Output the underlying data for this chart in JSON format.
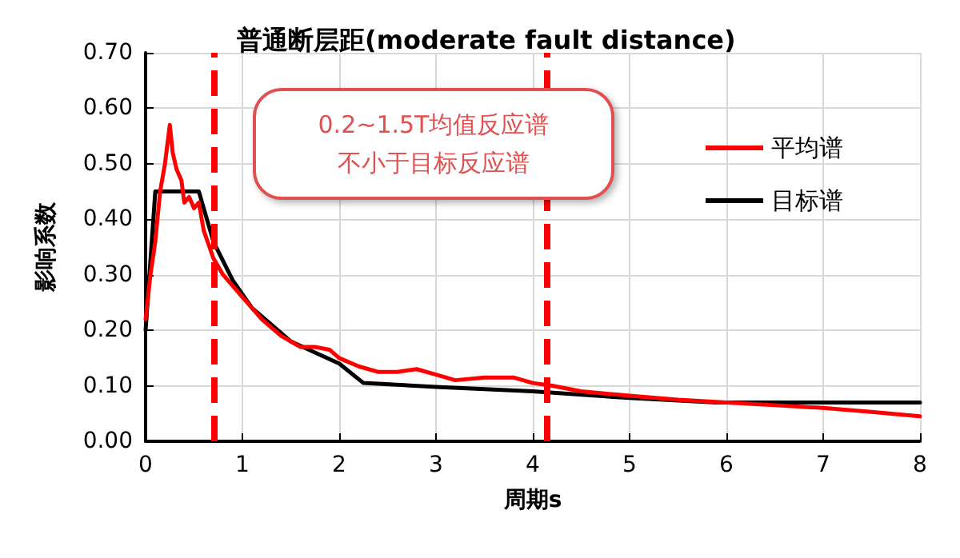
{
  "chart_data": {
    "type": "line",
    "title": "普通断层距(moderate fault distance)",
    "xlabel": "周期s",
    "ylabel": "影响系数",
    "annotations": [
      "0.2~1.5T均值反应谱",
      "不小于目标反应谱"
    ],
    "series": [
      {
        "name": "平均谱",
        "color": "#ff0000",
        "x": [
          0,
          0.05,
          0.1,
          0.15,
          0.2,
          0.25,
          0.28,
          0.32,
          0.37,
          0.4,
          0.45,
          0.5,
          0.55,
          0.6,
          0.7,
          0.8,
          0.9,
          1.0,
          1.1,
          1.2,
          1.4,
          1.6,
          1.75,
          1.9,
          2.0,
          2.2,
          2.4,
          2.6,
          2.8,
          3.0,
          3.2,
          3.5,
          3.8,
          4.0,
          4.2,
          4.5,
          5,
          5.5,
          6,
          6.5,
          7,
          7.5,
          8
        ],
        "values": [
          0.22,
          0.3,
          0.36,
          0.45,
          0.5,
          0.57,
          0.52,
          0.49,
          0.47,
          0.43,
          0.44,
          0.42,
          0.43,
          0.38,
          0.33,
          0.3,
          0.28,
          0.26,
          0.24,
          0.22,
          0.19,
          0.17,
          0.17,
          0.165,
          0.15,
          0.135,
          0.125,
          0.125,
          0.13,
          0.12,
          0.11,
          0.115,
          0.115,
          0.105,
          0.1,
          0.09,
          0.082,
          0.075,
          0.07,
          0.065,
          0.06,
          0.053,
          0.045
        ]
      },
      {
        "name": "目标谱",
        "color": "#000000",
        "x": [
          0,
          0.1,
          0.55,
          0.7,
          0.9,
          1.1,
          1.3,
          1.5,
          1.75,
          2.0,
          2.25,
          3.0,
          4.0,
          5.0,
          5.9,
          8
        ],
        "values": [
          0.2,
          0.45,
          0.45,
          0.36,
          0.29,
          0.24,
          0.21,
          0.18,
          0.16,
          0.14,
          0.105,
          0.098,
          0.09,
          0.078,
          0.07,
          0.07
        ]
      }
    ],
    "xlim": [
      0,
      8
    ],
    "xticks": [
      0,
      1,
      2,
      3,
      4,
      5,
      6,
      7,
      8
    ],
    "ylim": [
      0,
      0.7
    ],
    "yticks": [
      {
        "value": 0,
        "label": "0.00"
      },
      {
        "value": 0.1,
        "label": "0.10"
      },
      {
        "value": 0.2,
        "label": "0.20"
      },
      {
        "value": 0.3,
        "label": "0.30"
      },
      {
        "value": 0.4,
        "label": "0.40"
      },
      {
        "value": 0.5,
        "label": "0.50"
      },
      {
        "value": 0.6,
        "label": "0.60"
      },
      {
        "value": 0.7,
        "label": "0.70"
      }
    ],
    "ref_lines": [
      {
        "axis": "x",
        "value": 0.7,
        "color": "#ff0000",
        "line_style": "dashed"
      },
      {
        "axis": "x",
        "value": 4.15,
        "color": "#ff0000",
        "line_style": "dashed"
      }
    ],
    "grid": true,
    "legend": "top right",
    "marker": "none",
    "line_style": "solid"
  }
}
